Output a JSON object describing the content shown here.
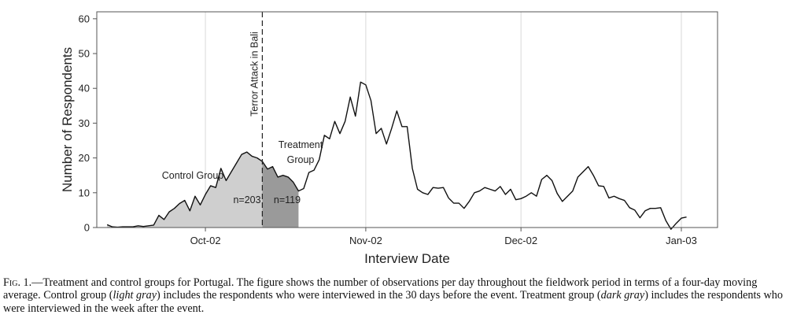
{
  "chart_data": {
    "type": "line",
    "xlabel": "Interview Date",
    "ylabel": "Number of Respondents",
    "ylim": [
      0,
      62
    ],
    "yticks": [
      0,
      10,
      20,
      30,
      40,
      50,
      60
    ],
    "xticks": [
      {
        "label": "Oct-02",
        "date": "2002-10-01"
      },
      {
        "label": "Nov-02",
        "date": "2002-11-01"
      },
      {
        "label": "Dec-02",
        "date": "2002-12-01"
      },
      {
        "label": "Jan-03",
        "date": "2003-01-01"
      }
    ],
    "xlim": [
      "2002-09-10",
      "2003-01-08"
    ],
    "grid": "vertical",
    "event": {
      "label": "Terror Attack in Bali",
      "date": "2002-10-12"
    },
    "groups": [
      {
        "name": "Control Group",
        "n_label": "n=203",
        "start": "2002-09-12",
        "end": "2002-10-12",
        "color": "#cfcfcf"
      },
      {
        "name": "Treatment Group",
        "n_label": "n=119",
        "start": "2002-10-12",
        "end": "2002-10-19",
        "color": "#9a9a9a"
      }
    ],
    "series": [
      {
        "x": [
          "2002-09-12",
          "2002-09-13",
          "2002-09-14",
          "2002-09-15",
          "2002-09-16",
          "2002-09-17",
          "2002-09-18",
          "2002-09-19",
          "2002-09-20",
          "2002-09-21",
          "2002-09-22",
          "2002-09-23",
          "2002-09-24",
          "2002-09-25",
          "2002-09-26",
          "2002-09-27",
          "2002-09-28",
          "2002-09-29",
          "2002-09-30",
          "2002-10-01",
          "2002-10-02",
          "2002-10-03",
          "2002-10-04",
          "2002-10-05",
          "2002-10-06",
          "2002-10-07",
          "2002-10-08",
          "2002-10-09",
          "2002-10-10",
          "2002-10-11",
          "2002-10-12",
          "2002-10-13",
          "2002-10-14",
          "2002-10-15",
          "2002-10-16",
          "2002-10-17",
          "2002-10-18",
          "2002-10-19",
          "2002-10-20",
          "2002-10-21",
          "2002-10-22",
          "2002-10-23",
          "2002-10-24",
          "2002-10-25",
          "2002-10-26",
          "2002-10-27",
          "2002-10-28",
          "2002-10-29",
          "2002-10-30",
          "2002-10-31",
          "2002-11-01",
          "2002-11-02",
          "2002-11-03",
          "2002-11-04",
          "2002-11-05",
          "2002-11-06",
          "2002-11-07",
          "2002-11-08",
          "2002-11-09",
          "2002-11-10",
          "2002-11-11",
          "2002-11-12",
          "2002-11-13",
          "2002-11-14",
          "2002-11-15",
          "2002-11-16",
          "2002-11-17",
          "2002-11-18",
          "2002-11-19",
          "2002-11-20",
          "2002-11-21",
          "2002-11-22",
          "2002-11-23",
          "2002-11-24",
          "2002-11-25",
          "2002-11-26",
          "2002-11-27",
          "2002-11-28",
          "2002-11-29",
          "2002-11-30",
          "2002-12-01",
          "2002-12-02",
          "2002-12-03",
          "2002-12-04",
          "2002-12-05",
          "2002-12-06",
          "2002-12-07",
          "2002-12-08",
          "2002-12-09",
          "2002-12-10",
          "2002-12-11",
          "2002-12-12",
          "2002-12-13",
          "2002-12-14",
          "2002-12-15",
          "2002-12-16",
          "2002-12-17",
          "2002-12-18",
          "2002-12-19",
          "2002-12-20",
          "2002-12-21",
          "2002-12-22",
          "2002-12-23",
          "2002-12-24",
          "2002-12-25",
          "2002-12-26",
          "2002-12-27",
          "2002-12-28",
          "2002-12-29",
          "2002-12-30",
          "2002-12-31",
          "2003-01-01",
          "2003-01-02"
        ],
        "values": [
          0.8,
          0.2,
          0.1,
          0.2,
          0.2,
          0.2,
          0.5,
          0.3,
          0.5,
          0.7,
          3.5,
          2.3,
          4.5,
          5.5,
          6.9,
          7.8,
          4.8,
          9.0,
          6.5,
          9.5,
          12.0,
          11.5,
          17.0,
          13.5,
          16.0,
          18.5,
          21.0,
          21.7,
          20.5,
          20.0,
          19.0,
          16.8,
          17.5,
          14.5,
          15.0,
          14.5,
          13.0,
          10.5,
          11.2,
          15.8,
          16.5,
          19.5,
          26.5,
          25.5,
          30.5,
          27.0,
          30.5,
          37.5,
          32.0,
          41.8,
          41.0,
          36.5,
          27.0,
          28.5,
          24.0,
          28.5,
          33.5,
          29.0,
          29.0,
          17.0,
          11.0,
          10.0,
          9.5,
          11.5,
          11.3,
          11.5,
          8.5,
          7.0,
          7.0,
          5.5,
          7.5,
          10.0,
          10.5,
          11.5,
          11.0,
          10.5,
          11.8,
          9.5,
          11.0,
          8.0,
          8.3,
          9.0,
          10.0,
          9.0,
          13.8,
          15.0,
          13.5,
          9.8,
          7.5,
          9.0,
          10.5,
          14.5,
          16.0,
          17.5,
          15.0,
          12.0,
          11.8,
          8.5,
          9.0,
          8.3,
          7.8,
          5.7,
          5.0,
          2.8,
          4.8,
          5.5,
          5.5,
          5.7,
          2.0,
          -0.5,
          1.2,
          2.7,
          3.0
        ]
      }
    ]
  },
  "caption": {
    "fig_label": "Fig. 1.",
    "part1": "—Treatment and control groups for Portugal. The figure shows the number of observations per day throughout the fieldwork period in terms of a four-day moving average. Control group (",
    "ital1": "light gray",
    "part2": ") includes the respondents who were interviewed in the 30 days before the event. Treatment group (",
    "ital2": "dark gray",
    "part3": ") includes the respondents who were interviewed in the week after the event."
  }
}
